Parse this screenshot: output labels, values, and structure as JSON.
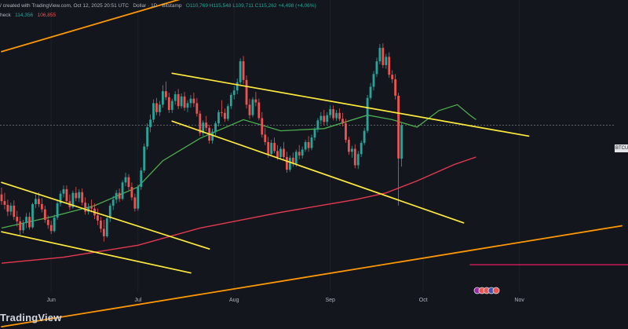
{
  "header": {
    "line1_prefix": "/",
    "line1_created": "created with TradingView.com, Oct 12, 2025 20:51 UTC",
    "symbol_desc": "Dollar · 1D · Bitstamp",
    "ohlc": {
      "o": "O110,769",
      "h": "H115,548",
      "l": "L109,711",
      "c": "C115,262",
      "chg": "+4,498 (+4.06%)"
    },
    "line2_label": "heck",
    "ind_val1": "114,356",
    "ind_val2": "106,855"
  },
  "price_tag": "BTCUSD",
  "watermark": "TradingView",
  "colors": {
    "background": "#14161d",
    "up": "#26a69a",
    "down": "#ef5350",
    "ma_fast": "#4caf50",
    "ma_slow": "#e91e63",
    "channel": "#ffeb3b",
    "long_channel": "#ff9800"
  },
  "chart_data": {
    "type": "candlestick",
    "timeframe": "1D",
    "exchange": "Bitstamp",
    "x_ticks": [
      "Jun",
      "Jul",
      "Aug",
      "Sep",
      "Oct",
      "Nov"
    ],
    "y_range": [
      88000,
      132000
    ],
    "candles": [
      [
        106000,
        106900,
        104600,
        105100
      ],
      [
        105100,
        106200,
        104000,
        104600
      ],
      [
        104600,
        105300,
        103100,
        103700
      ],
      [
        103700,
        104900,
        103200,
        104500
      ],
      [
        104500,
        105200,
        102600,
        103000
      ],
      [
        103000,
        103800,
        101700,
        102400
      ],
      [
        102400,
        103000,
        100600,
        101200
      ],
      [
        101200,
        102600,
        100800,
        102200
      ],
      [
        102200,
        103500,
        101500,
        103000
      ],
      [
        103000,
        103600,
        101300,
        101600
      ],
      [
        101600,
        104900,
        101400,
        104700
      ],
      [
        104700,
        106000,
        104200,
        105400
      ],
      [
        105400,
        106300,
        104300,
        104700
      ],
      [
        104700,
        105500,
        103600,
        104000
      ],
      [
        104000,
        104500,
        102200,
        102600
      ],
      [
        102600,
        103200,
        101400,
        101900
      ],
      [
        101900,
        102500,
        100700,
        101100
      ],
      [
        101100,
        103300,
        100900,
        102900
      ],
      [
        102900,
        105200,
        102600,
        104800
      ],
      [
        104800,
        106500,
        104400,
        106100
      ],
      [
        106100,
        107200,
        105600,
        106700
      ],
      [
        106700,
        107200,
        104800,
        105100
      ],
      [
        105100,
        106000,
        103900,
        104300
      ],
      [
        104300,
        106500,
        104100,
        106200
      ],
      [
        106200,
        107000,
        105100,
        105500
      ],
      [
        105500,
        106700,
        105000,
        106300
      ],
      [
        106300,
        106800,
        104500,
        104900
      ],
      [
        104900,
        105600,
        103300,
        103700
      ],
      [
        103700,
        104800,
        103300,
        104300
      ],
      [
        104300,
        105300,
        103600,
        104100
      ],
      [
        104100,
        104800,
        102700,
        103200
      ],
      [
        103200,
        104100,
        101900,
        102500
      ],
      [
        102500,
        103000,
        100900,
        101400
      ],
      [
        101400,
        102600,
        99700,
        100400
      ],
      [
        100400,
        103200,
        100200,
        102800
      ],
      [
        102800,
        104800,
        102300,
        104500
      ],
      [
        104500,
        105800,
        103900,
        105300
      ],
      [
        105300,
        106600,
        104800,
        106200
      ],
      [
        106200,
        106800,
        105000,
        105400
      ],
      [
        105400,
        107900,
        105200,
        107600
      ],
      [
        107600,
        108900,
        107100,
        108300
      ],
      [
        108300,
        108700,
        106600,
        107000
      ],
      [
        107000,
        107600,
        105200,
        105600
      ],
      [
        105600,
        106100,
        103700,
        104100
      ],
      [
        104100,
        107300,
        103800,
        107000
      ],
      [
        107000,
        109600,
        106600,
        109200
      ],
      [
        109200,
        112800,
        108900,
        112400
      ],
      [
        112400,
        115500,
        112000,
        115000
      ],
      [
        115000,
        116700,
        114300,
        116000
      ],
      [
        116000,
        118700,
        115600,
        118200
      ],
      [
        118200,
        118900,
        116600,
        117000
      ],
      [
        117000,
        118500,
        116500,
        118000
      ],
      [
        118000,
        120600,
        117600,
        119800
      ],
      [
        119800,
        121100,
        118600,
        119000
      ],
      [
        119000,
        119600,
        116900,
        117300
      ],
      [
        117300,
        118800,
        116900,
        118500
      ],
      [
        118500,
        119800,
        118000,
        119400
      ],
      [
        119400,
        120100,
        117400,
        117800
      ],
      [
        117800,
        119500,
        117500,
        119100
      ],
      [
        119100,
        119700,
        117200,
        117600
      ],
      [
        117600,
        118600,
        117000,
        118200
      ],
      [
        118200,
        119300,
        117600,
        118800
      ],
      [
        118800,
        119600,
        117700,
        118200
      ],
      [
        118200,
        118900,
        116400,
        116800
      ],
      [
        116800,
        117200,
        113800,
        114200
      ],
      [
        114200,
        115900,
        113800,
        115600
      ],
      [
        115600,
        116500,
        114500,
        114900
      ],
      [
        114900,
        115300,
        112800,
        113200
      ],
      [
        113200,
        114800,
        112800,
        114400
      ],
      [
        114400,
        115800,
        113900,
        115500
      ],
      [
        115500,
        117300,
        115100,
        117000
      ],
      [
        117000,
        118600,
        116400,
        116900
      ],
      [
        116900,
        117500,
        115700,
        116100
      ],
      [
        116100,
        118100,
        115800,
        117800
      ],
      [
        117800,
        119600,
        117400,
        119300
      ],
      [
        119300,
        120500,
        118700,
        119900
      ],
      [
        119900,
        121500,
        119400,
        121000
      ],
      [
        121000,
        124200,
        120700,
        123800
      ],
      [
        123800,
        124500,
        120800,
        121300
      ],
      [
        121300,
        121900,
        117500,
        118000
      ],
      [
        118000,
        118800,
        116100,
        116600
      ],
      [
        116600,
        119000,
        116300,
        118700
      ],
      [
        118700,
        119700,
        117800,
        118300
      ],
      [
        118300,
        118800,
        115900,
        116200
      ],
      [
        116200,
        117000,
        113600,
        114000
      ],
      [
        114000,
        114900,
        112600,
        113000
      ],
      [
        113000,
        113700,
        110900,
        111400
      ],
      [
        111400,
        113300,
        111100,
        112900
      ],
      [
        112900,
        113600,
        111500,
        111800
      ],
      [
        111800,
        112600,
        110600,
        111000
      ],
      [
        111000,
        112400,
        110700,
        112100
      ],
      [
        112100,
        113000,
        110700,
        111000
      ],
      [
        111000,
        111700,
        108900,
        109300
      ],
      [
        109300,
        111200,
        109000,
        110900
      ],
      [
        110900,
        111600,
        109700,
        110100
      ],
      [
        110100,
        112000,
        109700,
        111700
      ],
      [
        111700,
        112600,
        110700,
        111200
      ],
      [
        111200,
        112400,
        110800,
        112000
      ],
      [
        112000,
        113300,
        111700,
        113000
      ],
      [
        113000,
        113800,
        111700,
        112200
      ],
      [
        112200,
        114000,
        111900,
        113600
      ],
      [
        113600,
        115000,
        113200,
        114700
      ],
      [
        114700,
        116200,
        114300,
        115900
      ],
      [
        115900,
        117000,
        115400,
        116500
      ],
      [
        116500,
        117300,
        115300,
        115700
      ],
      [
        115700,
        117000,
        115300,
        116600
      ],
      [
        116600,
        117900,
        116200,
        117400
      ],
      [
        117400,
        117900,
        115900,
        116200
      ],
      [
        116200,
        117300,
        115800,
        116900
      ],
      [
        116900,
        117500,
        115800,
        116100
      ],
      [
        116100,
        116900,
        115100,
        115500
      ],
      [
        115500,
        116100,
        112900,
        113300
      ],
      [
        113300,
        113700,
        111300,
        111700
      ],
      [
        111700,
        112500,
        110900,
        112100
      ],
      [
        112100,
        112700,
        109500,
        109900
      ],
      [
        109900,
        111800,
        109400,
        111400
      ],
      [
        111400,
        113200,
        111000,
        112900
      ],
      [
        112900,
        114900,
        112600,
        114500
      ],
      [
        114500,
        119300,
        114200,
        118900
      ],
      [
        118900,
        120900,
        118600,
        120400
      ],
      [
        120400,
        122500,
        119900,
        122100
      ],
      [
        122100,
        124300,
        121700,
        123800
      ],
      [
        123800,
        126100,
        123400,
        125600
      ],
      [
        125600,
        126200,
        122900,
        123300
      ],
      [
        123300,
        124800,
        122800,
        124400
      ],
      [
        124400,
        125000,
        121600,
        122000
      ],
      [
        122000,
        122600,
        120900,
        121400
      ],
      [
        121400,
        122100,
        118700,
        119200
      ],
      [
        119200,
        119600,
        104500,
        110800
      ],
      [
        110769,
        115548,
        109711,
        115262
      ]
    ],
    "ma_fast": [
      [
        0,
        101500
      ],
      [
        16,
        103000
      ],
      [
        30,
        104500
      ],
      [
        44,
        107000
      ],
      [
        52,
        110500
      ],
      [
        64,
        113500
      ],
      [
        78,
        116000
      ],
      [
        90,
        114500
      ],
      [
        104,
        114800
      ],
      [
        118,
        116600
      ],
      [
        126,
        116000
      ],
      [
        134,
        115000
      ],
      [
        141,
        117200
      ],
      [
        147,
        118000
      ],
      [
        151,
        116600
      ],
      [
        153,
        116000
      ]
    ],
    "ma_slow": [
      [
        0,
        96800
      ],
      [
        20,
        97600
      ],
      [
        44,
        99200
      ],
      [
        64,
        101500
      ],
      [
        90,
        103600
      ],
      [
        114,
        105300
      ],
      [
        124,
        106200
      ],
      [
        134,
        107800
      ],
      [
        146,
        110000
      ],
      [
        153,
        111000
      ]
    ],
    "horizontal_level": {
      "price": 96600,
      "from_bar": 151
    },
    "trendlines": [
      {
        "name": "channel-a-upper",
        "color": "#ffeb3b",
        "points": [
          [
            0,
            107600
          ],
          [
            67,
            98700
          ]
        ]
      },
      {
        "name": "channel-a-lower",
        "color": "#ffeb3b",
        "points": [
          [
            0,
            101000
          ],
          [
            61,
            95500
          ]
        ]
      },
      {
        "name": "channel-b-upper",
        "color": "#ffeb3b",
        "points": [
          [
            55,
            122200
          ],
          [
            170,
            113800
          ]
        ]
      },
      {
        "name": "channel-b-lower",
        "color": "#ffeb3b",
        "points": [
          [
            55,
            115800
          ],
          [
            149,
            102200
          ]
        ]
      },
      {
        "name": "long-upper",
        "color": "#ff9800",
        "points": [
          [
            0,
            125100
          ],
          [
            200,
            149400
          ]
        ]
      },
      {
        "name": "long-lower",
        "color": "#ff9800",
        "points": [
          [
            0,
            88300
          ],
          [
            200,
            101800
          ]
        ]
      }
    ]
  }
}
